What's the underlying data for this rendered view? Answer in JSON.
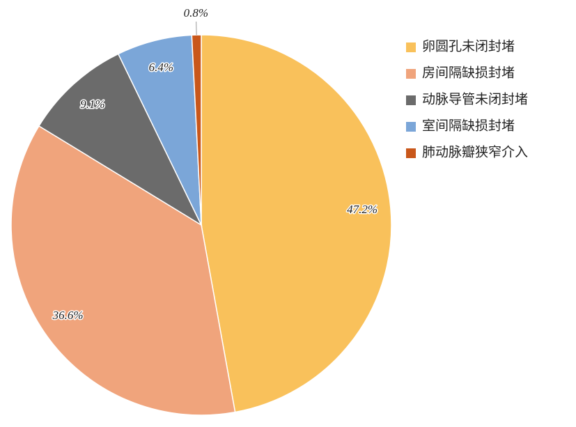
{
  "chart_data": {
    "type": "pie",
    "categories": [
      "卵圆孔未闭封堵",
      "房间隔缺损封堵",
      "动脉导管未闭封堵",
      "室间隔缺损封堵",
      "肺动脉瓣狭窄介入"
    ],
    "values": [
      47.2,
      36.6,
      9.1,
      6.4,
      0.8
    ],
    "value_labels": [
      "47.2%",
      "36.6%",
      "9.1%",
      "6.4%",
      "0.8%"
    ],
    "colors": [
      "#f9c15b",
      "#f0a47c",
      "#6b6b6b",
      "#7ba6d8",
      "#c9571a"
    ],
    "legend": "right"
  }
}
